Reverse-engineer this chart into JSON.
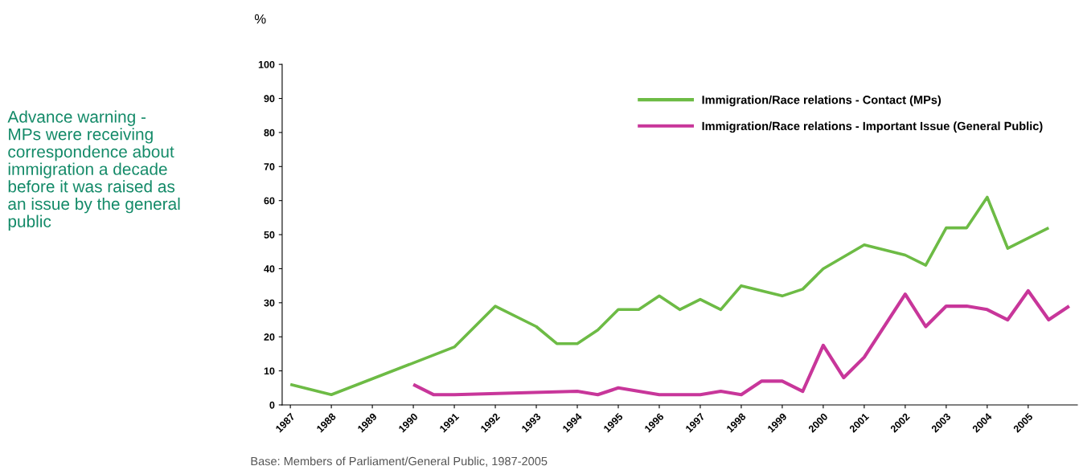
{
  "chart_data": {
    "type": "line",
    "ylabel": "%",
    "annotations": [
      "Advance warning -\nMPs were receiving\ncorrespondence about\nimmigration a decade\nbefore it was raised as\nan issue by the general\npublic",
      "Base: Members of Parliament/General Public, 1987-2005"
    ],
    "series": [
      {
        "name": "Immigration/Race relations - Contact (MPs)",
        "color": "#6dbb45",
        "x": [
          1987,
          1988,
          1991,
          1992,
          1993,
          1993.5,
          1994,
          1994.5,
          1995,
          1995.5,
          1996,
          1996.5,
          1997,
          1997.5,
          1998,
          1999,
          1999.5,
          2000,
          2001,
          2002,
          2002.5,
          2003,
          2003.5,
          2004,
          2004.5,
          2005.5
        ],
        "values": [
          6,
          3,
          17,
          29,
          23,
          18,
          18,
          22,
          28,
          28,
          32,
          28,
          31,
          28,
          35,
          32,
          34,
          40,
          47,
          44,
          41,
          52,
          52,
          61,
          46,
          52
        ]
      },
      {
        "name": "Immigration/Race relations - Important Issue (General Public)",
        "color": "#c8369a",
        "x": [
          1990,
          1990.5,
          1991,
          1994,
          1994.5,
          1995,
          1996,
          1996.5,
          1997,
          1997.5,
          1998,
          1998.5,
          1999,
          1999.5,
          2000,
          2000.5,
          2001,
          2002,
          2002.5,
          2003,
          2003.5,
          2004,
          2004.5,
          2005,
          2005.5,
          2006
        ],
        "values": [
          6,
          3,
          3,
          4,
          3,
          5,
          3,
          3,
          3,
          4,
          3,
          7,
          7,
          4,
          17.5,
          8,
          14,
          32.5,
          23,
          29,
          29,
          28,
          25,
          33.5,
          25,
          29
        ]
      }
    ],
    "xlim": [
      1986.8,
      2006.2
    ],
    "xticks": [
      1987,
      1988,
      1989,
      1990,
      1991,
      1992,
      1993,
      1994,
      1995,
      1996,
      1997,
      1998,
      1999,
      2000,
      2001,
      2002,
      2003,
      2004,
      2005
    ],
    "ylim": [
      0,
      100
    ],
    "yticks": [
      0,
      10,
      20,
      30,
      40,
      50,
      60,
      70,
      80,
      90,
      100
    ],
    "grid": false,
    "legend": "top right",
    "marker": "none",
    "line_style": "solid"
  }
}
